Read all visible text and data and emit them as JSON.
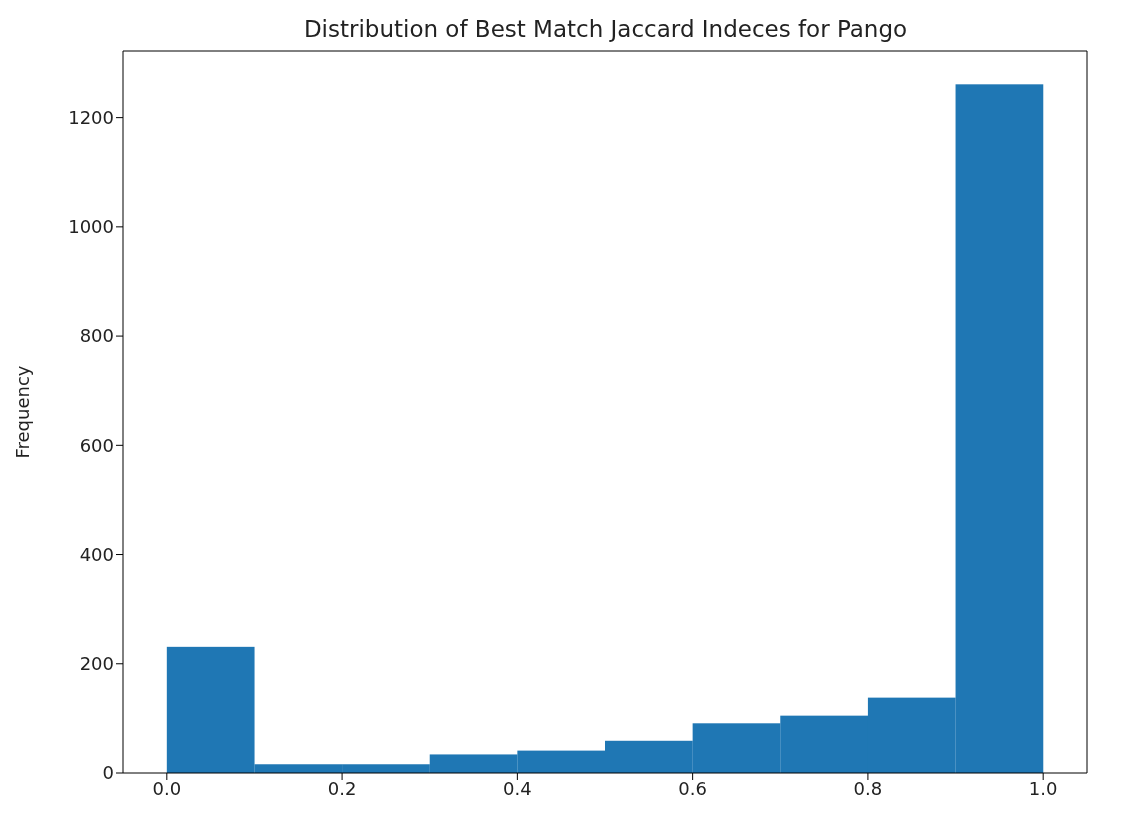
{
  "chart_data": {
    "type": "histogram",
    "title": "Distribution of Best Match Jaccard Indeces for Pango",
    "ylabel": "Frequency",
    "bins": [
      0,
      0.1,
      0.2,
      0.3,
      0.4,
      0.5,
      0.6,
      0.7,
      0.8,
      0.9,
      1.0
    ],
    "values": [
      231,
      16,
      16,
      34,
      41,
      59,
      91,
      105,
      138,
      1261
    ],
    "color": "#1f77b4",
    "xlim": [
      -0.05,
      1.05
    ],
    "xticks": [
      {
        "value": 0,
        "label": "0.0"
      },
      0.2,
      0.4,
      0.6,
      0.8,
      {
        "value": 1,
        "label": "1.0"
      }
    ],
    "ylim": [
      0,
      1322
    ],
    "yticks": [
      0,
      200,
      400,
      600,
      800,
      1000,
      1200
    ],
    "grid": false
  }
}
